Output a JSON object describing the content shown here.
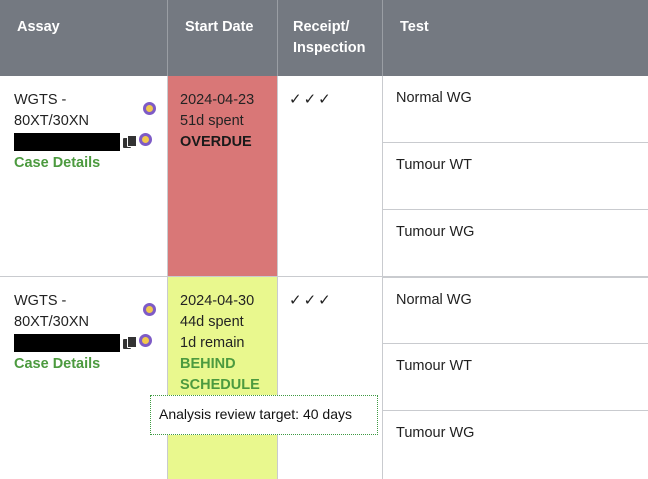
{
  "header": {
    "assay": "Assay",
    "start_date": "Start Date",
    "receipt_line1": "Receipt/",
    "receipt_line2": "Inspection",
    "test": "Test"
  },
  "rows": [
    {
      "assay_line1": "WGTS -",
      "assay_line2": "80XT/30XN",
      "case_link": "Case Details",
      "start_date": "2024-04-23",
      "spent": "51d spent",
      "remain": "",
      "status": "OVERDUE",
      "checks": "✓✓✓",
      "tests": [
        "Normal WG",
        "Tumour WT",
        "Tumour WG"
      ]
    },
    {
      "assay_line1": "WGTS -",
      "assay_line2": "80XT/30XN",
      "case_link": "Case Details",
      "start_date": "2024-04-30",
      "spent": "44d spent",
      "remain": "1d remain",
      "status": "BEHIND SCHEDULE",
      "checks": "✓✓✓",
      "tests": [
        "Normal WG",
        "Tumour WT",
        "Tumour WG"
      ]
    }
  ],
  "tooltip": "Analysis review target: 40 days",
  "colors": {
    "header_bg": "#747981",
    "overdue_bg": "#d97777",
    "behind_bg": "#e9f88e",
    "link_green": "#4c9a3f"
  },
  "icons": [
    "copy-icon",
    "status-dot-icon",
    "checkmark-icon"
  ]
}
